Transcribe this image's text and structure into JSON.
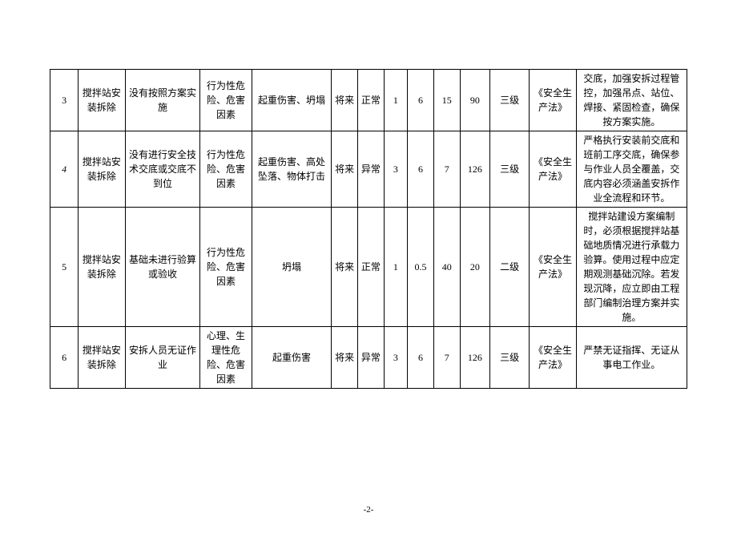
{
  "page_number": "-2-",
  "table": {
    "columns_count": 14,
    "rows": [
      {
        "idx": "3",
        "idx_italic": false,
        "activity": "搅拌站安装拆除",
        "hazard": "没有按照方案实施",
        "factor": "行为性危险、危害因素",
        "accident": "起重伤害、坍塌",
        "time": "将来",
        "status": "正常",
        "n1": "1",
        "n2": "6",
        "n3": "15",
        "n4": "90",
        "level": "三级",
        "law": "《安全生产法》",
        "measure": "交底，加强安拆过程管控，加强吊点、站位、焊接、紧固检查，确保按方案实施。"
      },
      {
        "idx": "4",
        "idx_italic": true,
        "activity": "搅拌站安装拆除",
        "hazard": "没有进行安全技术交底或交底不到位",
        "factor": "行为性危险、危害因素",
        "accident": "起重伤害、高处坠落、物体打击",
        "time": "将来",
        "status": "异常",
        "n1": "3",
        "n2": "6",
        "n3": "7",
        "n4": "126",
        "level": "三级",
        "law": "《安全生产法》",
        "measure": "严格执行安装前交底和班前工序交底，确保参与作业人员全覆盖，交底内容必须涵盖安拆作业全流程和环节。"
      },
      {
        "idx": "5",
        "idx_italic": false,
        "activity": "搅拌站安装拆除",
        "hazard": "基础未进行验算或验收",
        "factor": "行为性危险、危害因素",
        "accident": "坍塌",
        "time": "将来",
        "status": "正常",
        "n1": "1",
        "n2": "0.5",
        "n3": "40",
        "n4": "20",
        "level": "二级",
        "law": "《安全生产法》",
        "measure": "搅拌站建设方案编制时，必须根据搅拌站基础地质情况进行承载力验算。使用过程中应定期观测基础沉除。若发现沉降，应立即由工程部门编制治理方案并实施。"
      },
      {
        "idx": "6",
        "idx_italic": false,
        "activity": "搅拌站安装拆除",
        "hazard": "安拆人员无证作业",
        "factor": "心理、生理性危险、危害因素",
        "accident": "起重伤害",
        "time": "将来",
        "status": "异常",
        "n1": "3",
        "n2": "6",
        "n3": "7",
        "n4": "126",
        "level": "三级",
        "law": "《安全生产法》",
        "measure": "严禁无证指挥、无证从事电工作业。"
      }
    ]
  },
  "style": {
    "font_family": "SimSun",
    "font_size_cell": 12,
    "border_color": "#000000",
    "background": "#ffffff",
    "text_color": "#000000"
  }
}
